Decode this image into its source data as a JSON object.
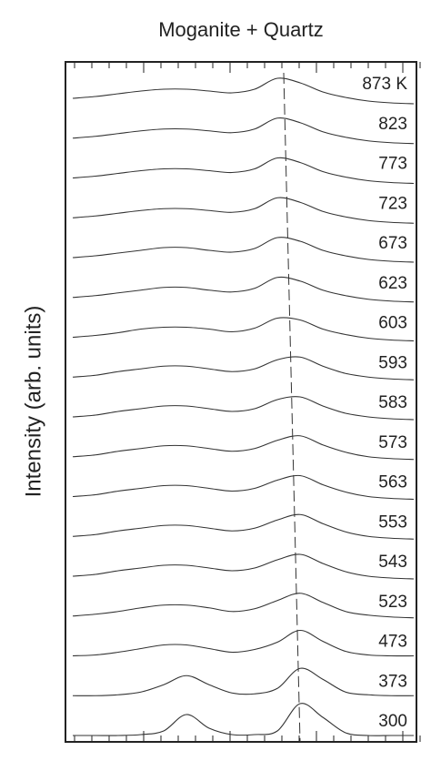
{
  "chart_data": {
    "type": "line",
    "title": "Moganite + Quartz",
    "y_label": "Intensity (arb. units)",
    "color": "#333333",
    "series": [
      {
        "name": "873 K",
        "values": [
          0,
          0.2,
          0.5,
          0.8,
          1.0,
          1.0,
          0.8,
          0.6,
          1.0,
          2.2,
          1.7,
          0.7,
          0.1,
          -0.3,
          -0.5,
          -0.6
        ]
      },
      {
        "name": "823",
        "values": [
          0,
          0.2,
          0.5,
          0.8,
          1.0,
          1.0,
          0.8,
          0.6,
          1.0,
          2.2,
          1.7,
          0.7,
          0.1,
          -0.3,
          -0.5,
          -0.6
        ]
      },
      {
        "name": "773",
        "values": [
          0,
          0.2,
          0.5,
          0.8,
          1.0,
          1.0,
          0.8,
          0.6,
          1.0,
          2.2,
          1.7,
          0.7,
          0.1,
          -0.3,
          -0.5,
          -0.6
        ]
      },
      {
        "name": "723",
        "values": [
          0,
          0.2,
          0.5,
          0.8,
          1.0,
          1.0,
          0.8,
          0.6,
          1.0,
          2.2,
          1.7,
          0.7,
          0.1,
          -0.3,
          -0.5,
          -0.6
        ]
      },
      {
        "name": "673",
        "values": [
          0,
          0.2,
          0.5,
          0.8,
          1.1,
          1.1,
          0.8,
          0.6,
          1.0,
          2.2,
          1.8,
          0.8,
          0.2,
          -0.2,
          -0.4,
          -0.5
        ]
      },
      {
        "name": "623",
        "values": [
          0,
          0.2,
          0.5,
          0.8,
          1.1,
          1.1,
          0.8,
          0.6,
          1.0,
          2.2,
          1.8,
          0.8,
          0.2,
          -0.2,
          -0.4,
          -0.5
        ]
      },
      {
        "name": "603",
        "values": [
          0,
          0.2,
          0.5,
          0.9,
          1.1,
          1.1,
          0.9,
          0.6,
          1.0,
          2.1,
          1.9,
          0.9,
          0.3,
          -0.1,
          -0.3,
          -0.4
        ]
      },
      {
        "name": "593",
        "values": [
          0,
          0.2,
          0.6,
          0.9,
          1.2,
          1.2,
          0.9,
          0.6,
          0.9,
          1.9,
          2.2,
          1.2,
          0.4,
          0,
          -0.2,
          -0.3
        ]
      },
      {
        "name": "583",
        "values": [
          0,
          0.2,
          0.6,
          0.9,
          1.2,
          1.2,
          0.9,
          0.6,
          0.9,
          1.9,
          2.2,
          1.2,
          0.4,
          0,
          -0.2,
          -0.3
        ]
      },
      {
        "name": "573",
        "values": [
          0,
          0.2,
          0.6,
          0.9,
          1.2,
          1.2,
          0.9,
          0.6,
          0.9,
          1.8,
          2.3,
          1.3,
          0.5,
          0,
          -0.2,
          -0.3
        ]
      },
      {
        "name": "563",
        "values": [
          0,
          0.2,
          0.6,
          0.9,
          1.2,
          1.2,
          0.9,
          0.6,
          0.9,
          1.8,
          2.3,
          1.3,
          0.5,
          0,
          -0.2,
          -0.3
        ]
      },
      {
        "name": "553",
        "values": [
          0,
          0.2,
          0.6,
          0.9,
          1.2,
          1.2,
          0.9,
          0.6,
          0.9,
          1.8,
          2.4,
          1.4,
          0.5,
          0,
          -0.2,
          -0.3
        ]
      },
      {
        "name": "543",
        "values": [
          0,
          0.2,
          0.6,
          0.9,
          1.2,
          1.2,
          0.9,
          0.6,
          0.9,
          1.8,
          2.4,
          1.4,
          0.5,
          0,
          -0.2,
          -0.3
        ]
      },
      {
        "name": "523",
        "values": [
          0,
          0.2,
          0.5,
          0.9,
          1.2,
          1.2,
          0.9,
          0.5,
          0.8,
          1.7,
          2.5,
          1.5,
          0.5,
          0.1,
          -0.1,
          -0.2
        ]
      },
      {
        "name": "473",
        "values": [
          0,
          0.1,
          0.4,
          0.8,
          1.2,
          1.2,
          0.8,
          0.4,
          0.7,
          1.5,
          2.8,
          1.6,
          0.5,
          0.1,
          0,
          0
        ]
      },
      {
        "name": "373",
        "values": [
          0,
          0,
          0.1,
          0.4,
          1.2,
          2.2,
          1.2,
          0.3,
          0.2,
          0.8,
          3.0,
          1.8,
          0.4,
          0.1,
          0,
          0
        ]
      },
      {
        "name": "300",
        "values": [
          0,
          0,
          0,
          0.1,
          0.5,
          2.3,
          0.8,
          0.1,
          0.1,
          0.5,
          3.5,
          2.0,
          0.3,
          0,
          0,
          0
        ]
      }
    ]
  }
}
